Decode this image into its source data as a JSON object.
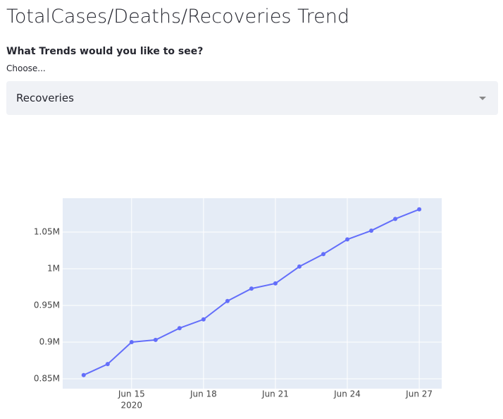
{
  "header": {
    "title": "TotalCases/Deaths/Recoveries Trend"
  },
  "form": {
    "label": "What Trends would you like to see?",
    "hint": "Choose...",
    "selected": "Recoveries"
  },
  "chart_data": {
    "type": "line",
    "x": [
      "2020-06-13",
      "2020-06-14",
      "2020-06-15",
      "2020-06-16",
      "2020-06-17",
      "2020-06-18",
      "2020-06-19",
      "2020-06-20",
      "2020-06-21",
      "2020-06-22",
      "2020-06-23",
      "2020-06-24",
      "2020-06-25",
      "2020-06-26",
      "2020-06-27"
    ],
    "series": [
      {
        "name": "Recoveries",
        "color": "#636efa",
        "values": [
          855000,
          870000,
          900000,
          903000,
          919000,
          931000,
          956000,
          973000,
          980000,
          1003000,
          1020000,
          1040000,
          1052000,
          1068000,
          1081000
        ]
      }
    ],
    "xlim": [
      "2020-06-12T03:00",
      "2020-06-27T22:30"
    ],
    "xticks": [
      {
        "value": "2020-06-15",
        "label": "Jun 15",
        "sublabel": "2020"
      },
      {
        "value": "2020-06-18",
        "label": "Jun 18"
      },
      {
        "value": "2020-06-21",
        "label": "Jun 21"
      },
      {
        "value": "2020-06-24",
        "label": "Jun 24"
      },
      {
        "value": "2020-06-27",
        "label": "Jun 27"
      }
    ],
    "ylim": [
      836500,
      1096200
    ],
    "yticks": [
      {
        "value": 850000,
        "label": "0.85M"
      },
      {
        "value": 900000,
        "label": "0.9M"
      },
      {
        "value": 950000,
        "label": "0.95M"
      },
      {
        "value": 1000000,
        "label": "1M"
      },
      {
        "value": 1050000,
        "label": "1.05M"
      }
    ],
    "grid": true
  }
}
